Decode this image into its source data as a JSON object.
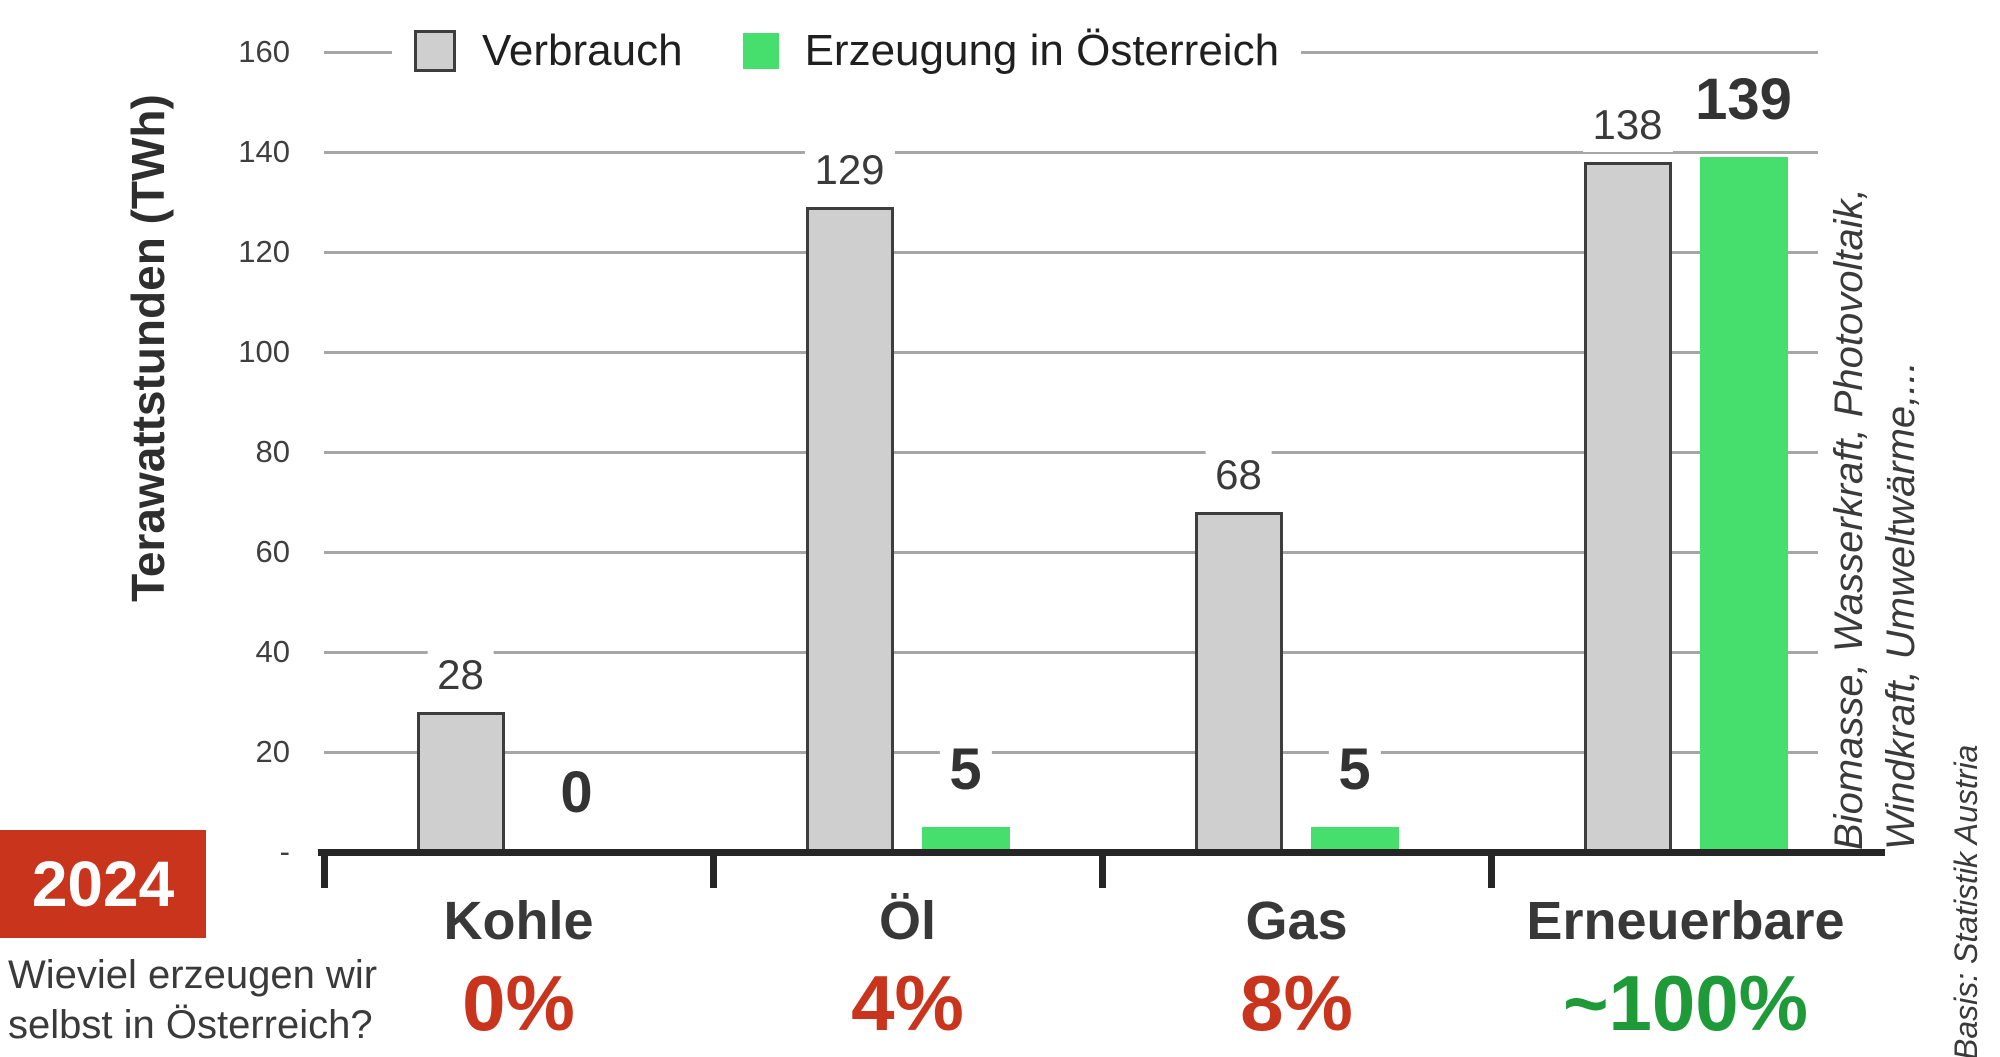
{
  "chart_data": {
    "type": "bar",
    "title": "",
    "ylabel": "Terawattstunden (TWh)",
    "xlabel": "",
    "ylim": [
      0,
      160
    ],
    "ytick_step": 20,
    "ytick_labels": [
      "160",
      "140",
      "120",
      "100",
      "80",
      "60",
      "40",
      "20",
      "-"
    ],
    "grid": true,
    "legend_position": "top",
    "categories": [
      "Kohle",
      "Öl",
      "Gas",
      "Erneuerbare"
    ],
    "category_ids": [
      "kohle",
      "oel",
      "gas",
      "erneuerbare"
    ],
    "series": [
      {
        "name": "Verbrauch",
        "values": [
          28,
          129,
          68,
          138
        ],
        "color": "#cfcfcf"
      },
      {
        "name": "Erzeugung in Österreich",
        "values": [
          0,
          5,
          5,
          139
        ],
        "color": "#46df6e"
      }
    ],
    "value_labels_verbrauch": [
      "28",
      "129",
      "68",
      "138"
    ],
    "value_labels_erzeugung": [
      "0",
      "5",
      "5",
      "139"
    ],
    "percent_labels": [
      "0%",
      "4%",
      "8%",
      "~100%"
    ],
    "percent_colors": [
      "#c8341c",
      "#c8341c",
      "#c8341c",
      "#1e9a39"
    ]
  },
  "annotations": {
    "year": "2024",
    "question_line1": "Wieviel erzeugen wir",
    "question_line2": "selbst in Österreich?",
    "side_note_line1": "Biomasse, Wasserkraft, Photovoltaik,",
    "side_note_line2": "Windkraft, Umweltwärme,...",
    "source": "Basis: Statistik Austria"
  },
  "colors": {
    "bar_consumption_fill": "#cfcfcf",
    "bar_consumption_border": "#3d3d3d",
    "bar_production_fill": "#46df6e",
    "gridline": "#a6a6a6",
    "axis": "#262626",
    "accent_red": "#c8341c",
    "accent_green": "#1e9a39",
    "text_dark": "#3a3a3a",
    "year_box_bg": "#c8341c"
  }
}
